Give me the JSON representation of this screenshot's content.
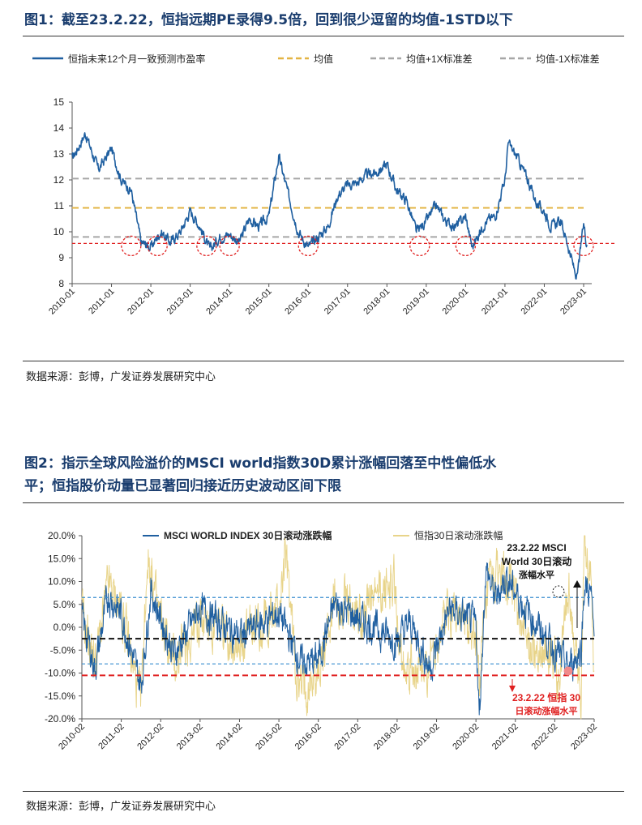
{
  "figure1": {
    "title": "图1：截至23.2.22，恒指远期PE录得9.5倍，回到很少逗留的均值-1STD以下",
    "source": "数据来源：彭博，广发证券发展研究中心",
    "chart_data": {
      "type": "line",
      "legend_position": "top",
      "grid": false,
      "x_ticks": [
        "2010-01",
        "2011-01",
        "2012-01",
        "2013-01",
        "2014-01",
        "2015-01",
        "2016-01",
        "2017-01",
        "2018-01",
        "2019-01",
        "2020-01",
        "2021-01",
        "2022-01",
        "2023-01"
      ],
      "ylim": [
        8,
        15
      ],
      "y_ticks": [
        8,
        9,
        10,
        11,
        12,
        13,
        14,
        15
      ],
      "series": [
        {
          "name": "恒指未来12个月一致预测市盈率",
          "color": "#1f5fa0",
          "style": "solid",
          "x": [
            "2010-01",
            "2010-05",
            "2010-09",
            "2011-01",
            "2011-04",
            "2011-07",
            "2011-10",
            "2012-01",
            "2012-04",
            "2012-07",
            "2012-10",
            "2013-01",
            "2013-04",
            "2013-07",
            "2013-10",
            "2014-01",
            "2014-04",
            "2014-07",
            "2014-10",
            "2015-01",
            "2015-04",
            "2015-07",
            "2015-10",
            "2016-01",
            "2016-04",
            "2016-07",
            "2016-10",
            "2017-01",
            "2017-04",
            "2017-07",
            "2017-10",
            "2018-01",
            "2018-04",
            "2018-07",
            "2018-10",
            "2019-01",
            "2019-04",
            "2019-07",
            "2019-10",
            "2020-01",
            "2020-03",
            "2020-07",
            "2020-10",
            "2021-01",
            "2021-02",
            "2021-05",
            "2021-08",
            "2021-11",
            "2022-01",
            "2022-03",
            "2022-06",
            "2022-08",
            "2022-10",
            "2022-11",
            "2023-01",
            "2023-02"
          ],
          "values": [
            12.8,
            13.8,
            12.4,
            13.2,
            12.0,
            11.6,
            9.6,
            9.4,
            10.0,
            9.6,
            10.0,
            10.8,
            10.2,
            9.3,
            9.8,
            9.9,
            9.6,
            10.5,
            10.2,
            10.6,
            12.9,
            11.4,
            10.0,
            9.4,
            9.8,
            10.2,
            11.4,
            11.8,
            11.9,
            12.2,
            12.3,
            12.6,
            11.6,
            11.2,
            10.0,
            10.4,
            11.0,
            10.4,
            10.2,
            10.6,
            9.4,
            10.4,
            10.6,
            12.0,
            13.4,
            12.8,
            12.0,
            11.0,
            10.8,
            10.2,
            10.4,
            9.6,
            8.6,
            8.2,
            10.3,
            9.5
          ]
        },
        {
          "name": "均值",
          "color": "#e3b443",
          "style": "dashed",
          "value": 10.92
        },
        {
          "name": "均值+1X标准差",
          "color": "#a6a6a6",
          "style": "dashed",
          "value": 12.05
        },
        {
          "name": "均值-1X标准差",
          "color": "#a6a6a6",
          "style": "dashed",
          "value": 9.8
        }
      ],
      "reference_line": {
        "value": 9.55,
        "color": "#e02020",
        "style": "dashed"
      },
      "highlight_circles_x": [
        "2011-07",
        "2012-03",
        "2013-06",
        "2014-01",
        "2016-01",
        "2018-11",
        "2020-01",
        "2023-01"
      ]
    }
  },
  "figure2": {
    "title_line1": "图2：指示全球风险溢价的MSCI world指数30D累计涨幅回落至中性偏低水",
    "title_line2": "平；恒指股价动量已显著回归接近历史波动区间下限",
    "source": "数据来源：彭博，广发证券发展研究中心",
    "annotation_top": [
      "23.2.22 MSCI",
      "World 30日滚动",
      "涨幅水平"
    ],
    "annotation_bottom": [
      "23.2.22 恒指 30",
      "日滚动涨幅水平"
    ],
    "chart_data": {
      "type": "line",
      "legend_position": "top",
      "grid": false,
      "x_ticks": [
        "2010-02",
        "2011-02",
        "2012-02",
        "2013-02",
        "2014-02",
        "2015-02",
        "2016-02",
        "2017-02",
        "2018-02",
        "2019-02",
        "2020-02",
        "2021-02",
        "2022-02",
        "2023-02"
      ],
      "ylim": [
        -20,
        20
      ],
      "y_ticks": [
        "20.0%",
        "15.0%",
        "10.0%",
        "5.0%",
        "0.0%",
        "-5.0%",
        "-10.0%",
        "-15.0%",
        "-20.0%"
      ],
      "series": [
        {
          "name": "MSCI WORLD INDEX 30日滚动涨跌幅",
          "color": "#1f5fa0",
          "style": "solid",
          "x": [
            "2010-02",
            "2010-06",
            "2010-10",
            "2011-02",
            "2011-08",
            "2011-11",
            "2012-06",
            "2013-02",
            "2014-02",
            "2015-02",
            "2015-09",
            "2016-02",
            "2016-07",
            "2017-02",
            "2018-02",
            "2018-06",
            "2018-12",
            "2019-06",
            "2020-02",
            "2020-03",
            "2020-05",
            "2020-08",
            "2020-11",
            "2021-06",
            "2022-02",
            "2022-06",
            "2022-10",
            "2022-11",
            "2023-01",
            "2023-02"
          ],
          "values": [
            2.0,
            -9.0,
            7.0,
            3.0,
            -13.0,
            8.0,
            -6.0,
            4.0,
            -2.0,
            3.0,
            -8.0,
            -7.0,
            5.0,
            2.0,
            -3.0,
            1.0,
            -9.0,
            4.0,
            0.5,
            -20.0,
            13.0,
            6.0,
            11.0,
            3.0,
            -5.0,
            -9.0,
            -5.0,
            9.0,
            7.0,
            -2.0
          ]
        },
        {
          "name": "恒指30日滚动涨跌幅",
          "color": "#e8d48a",
          "style": "solid",
          "x": [
            "2010-02",
            "2010-06",
            "2010-10",
            "2011-02",
            "2011-08",
            "2011-10",
            "2012-01",
            "2012-06",
            "2013-02",
            "2014-02",
            "2015-02",
            "2015-04",
            "2015-08",
            "2016-02",
            "2016-07",
            "2017-02",
            "2018-01",
            "2018-03",
            "2018-10",
            "2019-06",
            "2020-02",
            "2020-03",
            "2020-06",
            "2020-11",
            "2021-06",
            "2022-02",
            "2022-03",
            "2022-06",
            "2022-10",
            "2022-11",
            "2023-01",
            "2023-02"
          ],
          "values": [
            3.0,
            -8.0,
            9.0,
            4.0,
            -17.0,
            16.0,
            4.0,
            -8.0,
            2.0,
            -3.0,
            4.0,
            16.0,
            -14.0,
            -10.0,
            6.0,
            3.0,
            10.0,
            -5.0,
            -11.0,
            5.0,
            -3.0,
            -11.0,
            8.0,
            13.0,
            -4.0,
            -6.0,
            -16.0,
            9.0,
            -15.0,
            20.0,
            12.0,
            -9.5
          ]
        }
      ],
      "reference_lines": [
        {
          "value": 6.5,
          "color": "#3a8fd0",
          "style": "dashed"
        },
        {
          "value": -2.5,
          "color": "#111111",
          "style": "dashed"
        },
        {
          "value": -8.0,
          "color": "#3a8fd0",
          "style": "dashed"
        },
        {
          "value": -10.5,
          "color": "#e02020",
          "style": "dashed"
        }
      ]
    }
  }
}
